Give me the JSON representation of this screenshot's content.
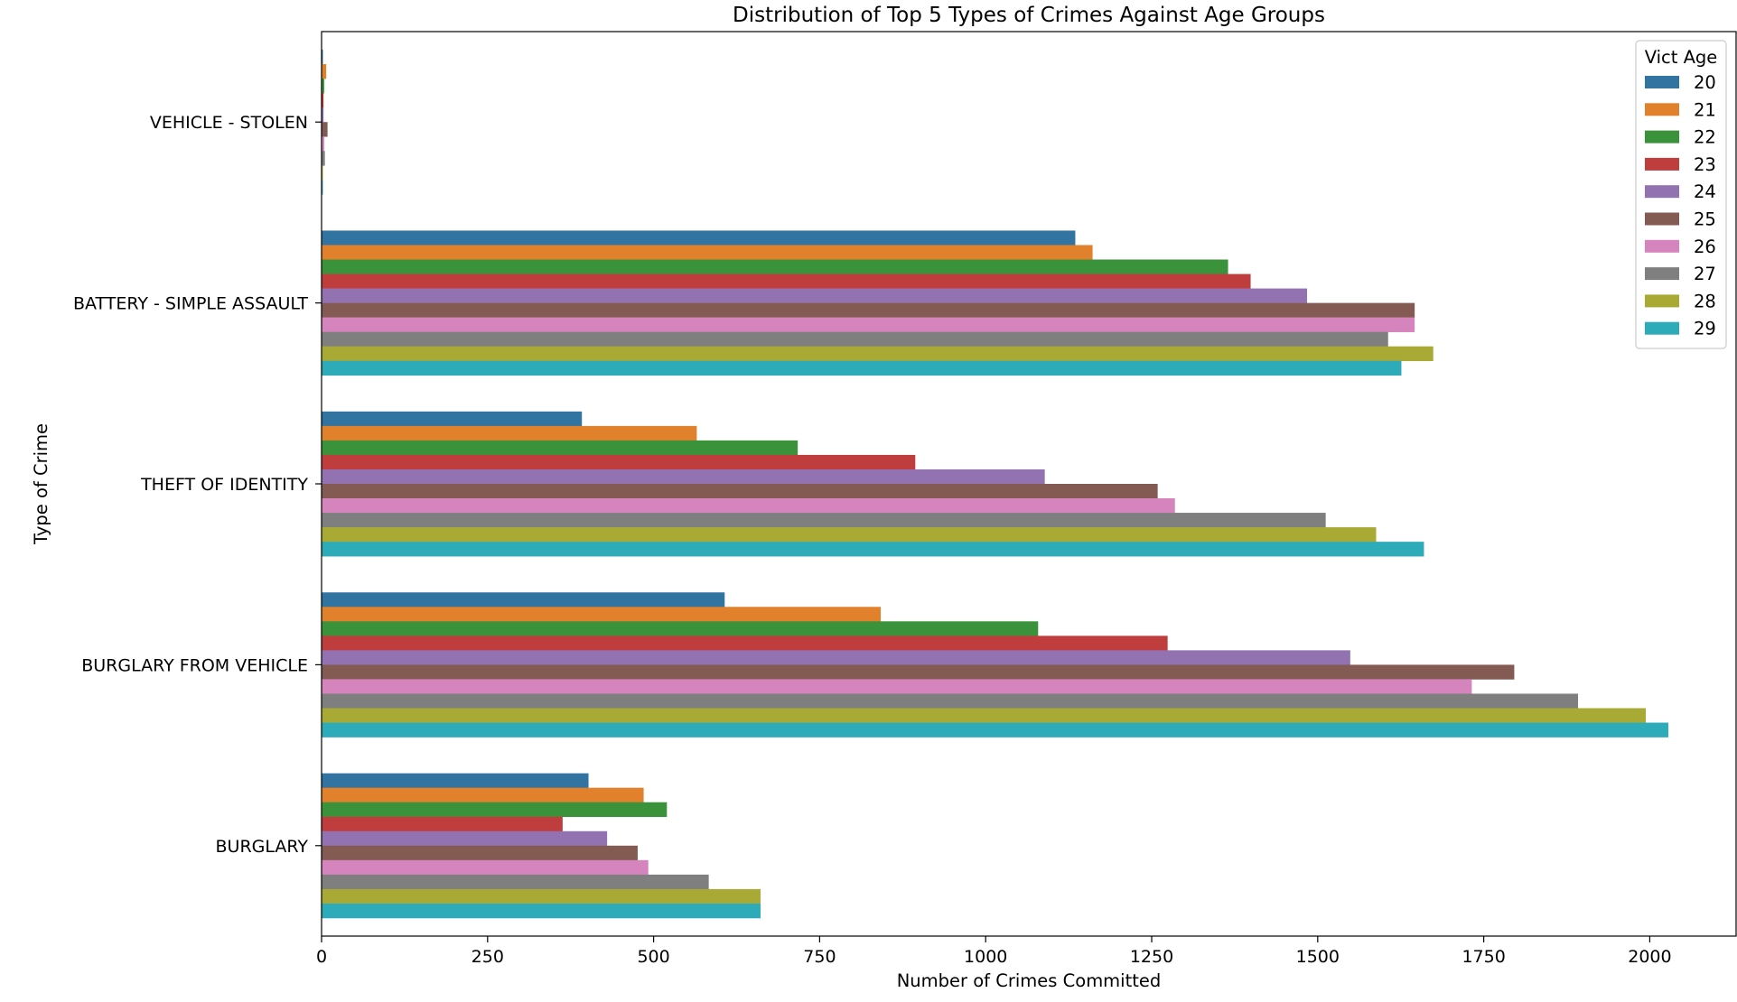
{
  "chart_data": {
    "type": "bar",
    "orientation": "horizontal",
    "title": "Distribution of Top 5 Types of Crimes Against Age Groups",
    "xlabel": "Number of Crimes Committed",
    "ylabel": "Type of Crime",
    "xlim": [
      0,
      2130
    ],
    "xticks": [
      0,
      250,
      500,
      750,
      1000,
      1250,
      1500,
      1750,
      2000
    ],
    "grid": false,
    "categories": [
      "VEHICLE - STOLEN",
      "BATTERY - SIMPLE ASSAULT",
      "THEFT OF IDENTITY",
      "BURGLARY FROM VEHICLE",
      "BURGLARY"
    ],
    "legend": {
      "title": "Vict Age",
      "placement": "top-right"
    },
    "series": [
      {
        "name": "20",
        "color": "#3274a1",
        "values": [
          2,
          1135,
          392,
          607,
          402
        ]
      },
      {
        "name": "21",
        "color": "#e1812c",
        "values": [
          7,
          1161,
          565,
          842,
          485
        ]
      },
      {
        "name": "22",
        "color": "#3a923a",
        "values": [
          4,
          1365,
          717,
          1079,
          520
        ]
      },
      {
        "name": "23",
        "color": "#c03d3e",
        "values": [
          3,
          1399,
          894,
          1274,
          363
        ]
      },
      {
        "name": "24",
        "color": "#9372b2",
        "values": [
          3,
          1484,
          1089,
          1549,
          430
        ]
      },
      {
        "name": "25",
        "color": "#845b53",
        "values": [
          9,
          1646,
          1259,
          1796,
          476
        ]
      },
      {
        "name": "26",
        "color": "#d684bd",
        "values": [
          4,
          1646,
          1285,
          1732,
          492
        ]
      },
      {
        "name": "27",
        "color": "#7f7f7f",
        "values": [
          5,
          1606,
          1512,
          1892,
          583
        ]
      },
      {
        "name": "28",
        "color": "#a9aa35",
        "values": [
          2,
          1674,
          1588,
          1994,
          661
        ]
      },
      {
        "name": "29",
        "color": "#2eabb8",
        "values": [
          2,
          1626,
          1660,
          2028,
          661
        ]
      }
    ]
  }
}
